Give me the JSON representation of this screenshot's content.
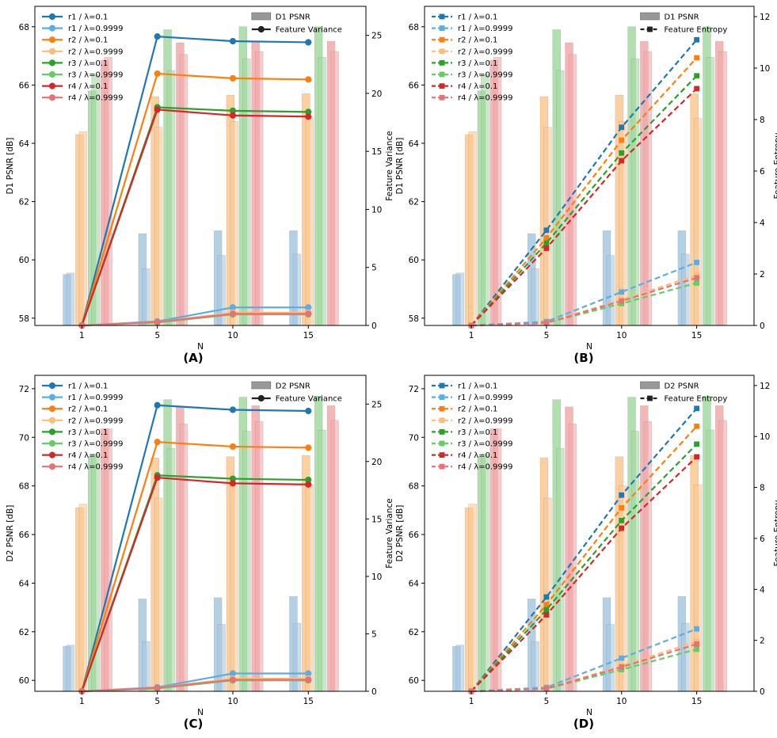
{
  "colors": {
    "r1_dark": "#1f77b4",
    "r1_light": "#5dade2",
    "r2_dark": "#ff7f0e",
    "r2_light": "#ffbb78",
    "r3_dark": "#2ca02c",
    "r3_light": "#66cc66",
    "r4_dark": "#d62728",
    "r4_light": "#e57373",
    "bar_r1": "#a6c8e0",
    "bar_r2": "#fdc891",
    "bar_r3": "#a3d9a1",
    "bar_r4": "#f2aaaa",
    "legend_gray": "#999999"
  },
  "chart_data": [
    {
      "panel": "(A)",
      "type": "bar+line",
      "xlabel": "N",
      "ylabel_left": "D1 PSNR [dB]",
      "ylabel_right": "Feature Variance",
      "categories": [
        "1",
        "5",
        "10",
        "15"
      ],
      "ylim_left": [
        57.75,
        68.7
      ],
      "ylim_right": [
        0,
        27.5
      ],
      "yticks_left": [
        58,
        60,
        62,
        64,
        66,
        68
      ],
      "yticks_right": [
        0,
        5,
        10,
        15,
        20,
        25
      ],
      "bar_legend": "D1 PSNR",
      "line_legend": "Feature Variance",
      "line_style": "solid",
      "marker": "circle",
      "bars": [
        {
          "name": "r1 / λ=0.1",
          "color_key": "bar_r1",
          "values": [
            59.5,
            60.9,
            61.0,
            61.0
          ]
        },
        {
          "name": "r1 / λ=0.9999",
          "color_key": "bar_r1",
          "values": [
            59.55,
            59.7,
            60.15,
            60.2
          ]
        },
        {
          "name": "r2 / λ=0.1",
          "color_key": "bar_r2",
          "values": [
            64.3,
            65.6,
            65.65,
            65.7
          ]
        },
        {
          "name": "r2 / λ=0.9999",
          "color_key": "bar_r2",
          "values": [
            64.4,
            64.55,
            64.75,
            64.85
          ]
        },
        {
          "name": "r3 / λ=0.1",
          "color_key": "bar_r3",
          "values": [
            65.8,
            67.9,
            68.0,
            68.0
          ]
        },
        {
          "name": "r3 / λ=0.9999",
          "color_key": "bar_r3",
          "values": [
            66.35,
            66.5,
            66.9,
            66.95
          ]
        },
        {
          "name": "r4 / λ=0.1",
          "color_key": "bar_r4",
          "values": [
            66.85,
            67.45,
            67.5,
            67.5
          ]
        },
        {
          "name": "r4 / λ=0.9999",
          "color_key": "bar_r4",
          "values": [
            66.95,
            67.05,
            67.15,
            67.15
          ]
        }
      ],
      "series": [
        {
          "name": "r1 / λ=0.1",
          "color_key": "r1_dark",
          "values": [
            0,
            24.9,
            24.5,
            24.4
          ]
        },
        {
          "name": "r1 / λ=0.9999",
          "color_key": "r1_light",
          "values": [
            0,
            0.35,
            1.55,
            1.55
          ]
        },
        {
          "name": "r2 / λ=0.1",
          "color_key": "r2_dark",
          "values": [
            0,
            21.7,
            21.3,
            21.2
          ]
        },
        {
          "name": "r2 / λ=0.9999",
          "color_key": "r2_light",
          "values": [
            0,
            0.3,
            1.1,
            1.1
          ]
        },
        {
          "name": "r3 / λ=0.1",
          "color_key": "r3_dark",
          "values": [
            0,
            18.8,
            18.5,
            18.4
          ]
        },
        {
          "name": "r3 / λ=0.9999",
          "color_key": "r3_light",
          "values": [
            0,
            0.25,
            0.95,
            0.95
          ]
        },
        {
          "name": "r4 / λ=0.1",
          "color_key": "r4_dark",
          "values": [
            0,
            18.6,
            18.1,
            18.0
          ]
        },
        {
          "name": "r4 / λ=0.9999",
          "color_key": "r4_light",
          "values": [
            0,
            0.3,
            1.0,
            1.0
          ]
        }
      ]
    },
    {
      "panel": "(B)",
      "type": "bar+line",
      "xlabel": "N",
      "ylabel_left": "D1 PSNR [dB]",
      "ylabel_right": "Feature Entropy",
      "categories": [
        "1",
        "5",
        "10",
        "15"
      ],
      "ylim_left": [
        57.75,
        68.7
      ],
      "ylim_right": [
        0,
        12.4
      ],
      "yticks_left": [
        58,
        60,
        62,
        64,
        66,
        68
      ],
      "yticks_right": [
        0,
        2,
        4,
        6,
        8,
        10,
        12
      ],
      "bar_legend": "D1 PSNR",
      "line_legend": "Feature Entropy",
      "line_style": "dashed",
      "marker": "square",
      "bars": [
        {
          "name": "r1 / λ=0.1",
          "color_key": "bar_r1",
          "values": [
            59.5,
            60.9,
            61.0,
            61.0
          ]
        },
        {
          "name": "r1 / λ=0.9999",
          "color_key": "bar_r1",
          "values": [
            59.55,
            59.7,
            60.15,
            60.2
          ]
        },
        {
          "name": "r2 / λ=0.1",
          "color_key": "bar_r2",
          "values": [
            64.3,
            65.6,
            65.65,
            65.7
          ]
        },
        {
          "name": "r2 / λ=0.9999",
          "color_key": "bar_r2",
          "values": [
            64.4,
            64.55,
            64.75,
            64.85
          ]
        },
        {
          "name": "r3 / λ=0.1",
          "color_key": "bar_r3",
          "values": [
            65.8,
            67.9,
            68.0,
            68.0
          ]
        },
        {
          "name": "r3 / λ=0.9999",
          "color_key": "bar_r3",
          "values": [
            66.35,
            66.5,
            66.9,
            66.95
          ]
        },
        {
          "name": "r4 / λ=0.1",
          "color_key": "bar_r4",
          "values": [
            66.85,
            67.45,
            67.5,
            67.5
          ]
        },
        {
          "name": "r4 / λ=0.9999",
          "color_key": "bar_r4",
          "values": [
            66.95,
            67.05,
            67.15,
            67.15
          ]
        }
      ],
      "series": [
        {
          "name": "r1 / λ=0.1",
          "color_key": "r1_dark",
          "values": [
            0,
            3.7,
            7.7,
            11.1
          ]
        },
        {
          "name": "r1 / λ=0.9999",
          "color_key": "r1_light",
          "values": [
            0,
            0.15,
            1.3,
            2.45
          ]
        },
        {
          "name": "r2 / λ=0.1",
          "color_key": "r2_dark",
          "values": [
            0,
            3.4,
            7.2,
            10.4
          ]
        },
        {
          "name": "r2 / λ=0.9999",
          "color_key": "r2_light",
          "values": [
            0,
            0.1,
            1.0,
            1.95
          ]
        },
        {
          "name": "r3 / λ=0.1",
          "color_key": "r3_dark",
          "values": [
            0,
            3.2,
            6.7,
            9.7
          ]
        },
        {
          "name": "r3 / λ=0.9999",
          "color_key": "r3_light",
          "values": [
            0,
            0.1,
            0.85,
            1.65
          ]
        },
        {
          "name": "r4 / λ=0.1",
          "color_key": "r4_dark",
          "values": [
            0,
            3.0,
            6.4,
            9.2
          ]
        },
        {
          "name": "r4 / λ=0.9999",
          "color_key": "r4_light",
          "values": [
            0,
            0.1,
            0.95,
            1.85
          ]
        }
      ]
    },
    {
      "panel": "(C)",
      "type": "bar+line",
      "xlabel": "N",
      "ylabel_left": "D2 PSNR [dB]",
      "ylabel_right": "Feature Variance",
      "categories": [
        "1",
        "5",
        "10",
        "15"
      ],
      "ylim_left": [
        59.55,
        72.55
      ],
      "ylim_right": [
        0,
        27.5
      ],
      "yticks_left": [
        60,
        62,
        64,
        66,
        68,
        70,
        72
      ],
      "yticks_right": [
        0,
        5,
        10,
        15,
        20,
        25
      ],
      "bar_legend": "D2 PSNR",
      "line_legend": "Feature Variance",
      "line_style": "solid",
      "marker": "circle",
      "bars": [
        {
          "name": "r1 / λ=0.1",
          "color_key": "bar_r1",
          "values": [
            61.4,
            63.35,
            63.4,
            63.45
          ]
        },
        {
          "name": "r1 / λ=0.9999",
          "color_key": "bar_r1",
          "values": [
            61.45,
            61.6,
            62.3,
            62.35
          ]
        },
        {
          "name": "r2 / λ=0.1",
          "color_key": "bar_r2",
          "values": [
            67.1,
            69.15,
            69.2,
            69.25
          ]
        },
        {
          "name": "r2 / λ=0.9999",
          "color_key": "bar_r2",
          "values": [
            67.25,
            67.5,
            68.0,
            68.05
          ]
        },
        {
          "name": "r3 / λ=0.1",
          "color_key": "bar_r3",
          "values": [
            69.2,
            71.55,
            71.65,
            71.7
          ]
        },
        {
          "name": "r3 / λ=0.9999",
          "color_key": "bar_r3",
          "values": [
            69.3,
            69.55,
            70.25,
            70.3
          ]
        },
        {
          "name": "r4 / λ=0.1",
          "color_key": "bar_r4",
          "values": [
            70.35,
            71.25,
            71.3,
            71.3
          ]
        },
        {
          "name": "r4 / λ=0.9999",
          "color_key": "bar_r4",
          "values": [
            70.35,
            70.55,
            70.65,
            70.7
          ]
        }
      ],
      "series": [
        {
          "name": "r1 / λ=0.1",
          "color_key": "r1_dark",
          "values": [
            0,
            24.9,
            24.5,
            24.4
          ]
        },
        {
          "name": "r1 / λ=0.9999",
          "color_key": "r1_light",
          "values": [
            0,
            0.35,
            1.55,
            1.55
          ]
        },
        {
          "name": "r2 / λ=0.1",
          "color_key": "r2_dark",
          "values": [
            0,
            21.7,
            21.3,
            21.2
          ]
        },
        {
          "name": "r2 / λ=0.9999",
          "color_key": "r2_light",
          "values": [
            0,
            0.3,
            1.1,
            1.1
          ]
        },
        {
          "name": "r3 / λ=0.1",
          "color_key": "r3_dark",
          "values": [
            0,
            18.8,
            18.5,
            18.4
          ]
        },
        {
          "name": "r3 / λ=0.9999",
          "color_key": "r3_light",
          "values": [
            0,
            0.25,
            0.95,
            0.95
          ]
        },
        {
          "name": "r4 / λ=0.1",
          "color_key": "r4_dark",
          "values": [
            0,
            18.6,
            18.1,
            18.0
          ]
        },
        {
          "name": "r4 / λ=0.9999",
          "color_key": "r4_light",
          "values": [
            0,
            0.3,
            1.0,
            1.0
          ]
        }
      ]
    },
    {
      "panel": "(D)",
      "type": "bar+line",
      "xlabel": "N",
      "ylabel_left": "D2 PSNR [dB]",
      "ylabel_right": "Feature Entropy",
      "categories": [
        "1",
        "5",
        "10",
        "15"
      ],
      "ylim_left": [
        59.55,
        72.55
      ],
      "ylim_right": [
        0,
        12.4
      ],
      "yticks_left": [
        60,
        62,
        64,
        66,
        68,
        70,
        72
      ],
      "yticks_right": [
        0,
        2,
        4,
        6,
        8,
        10,
        12
      ],
      "bar_legend": "D2 PSNR",
      "line_legend": "Feature Entropy",
      "line_style": "dashed",
      "marker": "square",
      "bars": [
        {
          "name": "r1 / λ=0.1",
          "color_key": "bar_r1",
          "values": [
            61.4,
            63.35,
            63.4,
            63.45
          ]
        },
        {
          "name": "r1 / λ=0.9999",
          "color_key": "bar_r1",
          "values": [
            61.45,
            61.6,
            62.3,
            62.35
          ]
        },
        {
          "name": "r2 / λ=0.1",
          "color_key": "bar_r2",
          "values": [
            67.1,
            69.15,
            69.2,
            69.25
          ]
        },
        {
          "name": "r2 / λ=0.9999",
          "color_key": "bar_r2",
          "values": [
            67.25,
            67.5,
            68.0,
            68.05
          ]
        },
        {
          "name": "r3 / λ=0.1",
          "color_key": "bar_r3",
          "values": [
            69.2,
            71.55,
            71.65,
            71.7
          ]
        },
        {
          "name": "r3 / λ=0.9999",
          "color_key": "bar_r3",
          "values": [
            69.3,
            69.55,
            70.25,
            70.3
          ]
        },
        {
          "name": "r4 / λ=0.1",
          "color_key": "bar_r4",
          "values": [
            70.35,
            71.25,
            71.3,
            71.3
          ]
        },
        {
          "name": "r4 / λ=0.9999",
          "color_key": "bar_r4",
          "values": [
            70.35,
            70.55,
            70.65,
            70.7
          ]
        }
      ],
      "series": [
        {
          "name": "r1 / λ=0.1",
          "color_key": "r1_dark",
          "values": [
            0,
            3.7,
            7.7,
            11.1
          ]
        },
        {
          "name": "r1 / λ=0.9999",
          "color_key": "r1_light",
          "values": [
            0,
            0.15,
            1.3,
            2.45
          ]
        },
        {
          "name": "r2 / λ=0.1",
          "color_key": "r2_dark",
          "values": [
            0,
            3.4,
            7.2,
            10.4
          ]
        },
        {
          "name": "r2 / λ=0.9999",
          "color_key": "r2_light",
          "values": [
            0,
            0.1,
            1.0,
            1.95
          ]
        },
        {
          "name": "r3 / λ=0.1",
          "color_key": "r3_dark",
          "values": [
            0,
            3.2,
            6.7,
            9.7
          ]
        },
        {
          "name": "r3 / λ=0.9999",
          "color_key": "r3_light",
          "values": [
            0,
            0.1,
            0.85,
            1.65
          ]
        },
        {
          "name": "r4 / λ=0.1",
          "color_key": "r4_dark",
          "values": [
            0,
            3.0,
            6.4,
            9.2
          ]
        },
        {
          "name": "r4 / λ=0.9999",
          "color_key": "r4_light",
          "values": [
            0,
            0.1,
            0.95,
            1.85
          ]
        }
      ]
    }
  ]
}
